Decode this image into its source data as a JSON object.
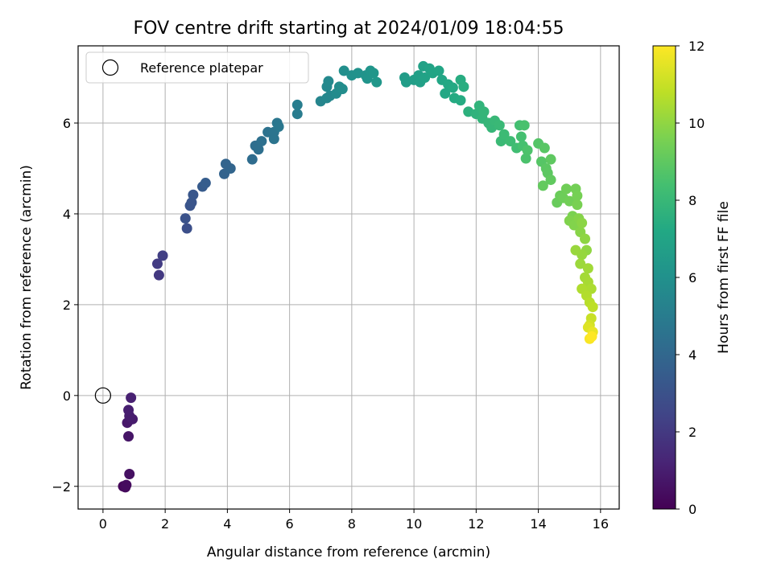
{
  "chart_data": {
    "type": "scatter",
    "title": "FOV centre drift starting at 2024/01/09 18:04:55",
    "xlabel": "Angular distance from reference (arcmin)",
    "ylabel": "Rotation from reference (arcmin)",
    "xlim": [
      -0.8,
      16.6
    ],
    "ylim": [
      -2.5,
      7.7
    ],
    "xticks": [
      0,
      2,
      4,
      6,
      8,
      10,
      12,
      14,
      16
    ],
    "yticks": [
      -2,
      0,
      2,
      4,
      6
    ],
    "grid": true,
    "legend": {
      "position": "top-left",
      "entries": [
        "Reference platepar"
      ]
    },
    "reference_point": {
      "x": 0,
      "y": 0,
      "label": "Reference platepar"
    },
    "colorbar": {
      "label": "Hours from first FF file",
      "range": [
        0,
        12
      ],
      "ticks": [
        0,
        2,
        4,
        6,
        8,
        10,
        12
      ],
      "colormap": "viridis"
    },
    "points": [
      {
        "x": 0.65,
        "y": -2.0,
        "c": 0.2
      },
      {
        "x": 0.72,
        "y": -2.02,
        "c": 0.3
      },
      {
        "x": 0.75,
        "y": -1.97,
        "c": 0.35
      },
      {
        "x": 0.85,
        "y": -1.73,
        "c": 0.5
      },
      {
        "x": 0.82,
        "y": -0.9,
        "c": 0.7
      },
      {
        "x": 0.78,
        "y": -0.6,
        "c": 0.8
      },
      {
        "x": 0.95,
        "y": -0.52,
        "c": 0.9
      },
      {
        "x": 0.85,
        "y": -0.45,
        "c": 0.95
      },
      {
        "x": 0.82,
        "y": -0.32,
        "c": 1.0
      },
      {
        "x": 0.9,
        "y": -0.05,
        "c": 1.1
      },
      {
        "x": 1.8,
        "y": 2.65,
        "c": 2.0
      },
      {
        "x": 1.75,
        "y": 2.9,
        "c": 2.1
      },
      {
        "x": 1.92,
        "y": 3.08,
        "c": 2.2
      },
      {
        "x": 2.7,
        "y": 3.68,
        "c": 2.9
      },
      {
        "x": 2.65,
        "y": 3.9,
        "c": 3.0
      },
      {
        "x": 2.8,
        "y": 4.18,
        "c": 3.1
      },
      {
        "x": 2.85,
        "y": 4.25,
        "c": 3.15
      },
      {
        "x": 2.9,
        "y": 4.42,
        "c": 3.2
      },
      {
        "x": 3.2,
        "y": 4.6,
        "c": 3.4
      },
      {
        "x": 3.3,
        "y": 4.68,
        "c": 3.5
      },
      {
        "x": 3.9,
        "y": 4.88,
        "c": 3.8
      },
      {
        "x": 4.1,
        "y": 5.0,
        "c": 3.9
      },
      {
        "x": 3.95,
        "y": 5.1,
        "c": 3.85
      },
      {
        "x": 4.8,
        "y": 5.2,
        "c": 4.2
      },
      {
        "x": 4.9,
        "y": 5.5,
        "c": 4.3
      },
      {
        "x": 5.0,
        "y": 5.42,
        "c": 4.35
      },
      {
        "x": 5.1,
        "y": 5.6,
        "c": 4.4
      },
      {
        "x": 5.3,
        "y": 5.8,
        "c": 4.5
      },
      {
        "x": 5.5,
        "y": 5.65,
        "c": 4.6
      },
      {
        "x": 5.5,
        "y": 5.8,
        "c": 4.6
      },
      {
        "x": 5.6,
        "y": 6.0,
        "c": 4.7
      },
      {
        "x": 5.65,
        "y": 5.92,
        "c": 4.75
      },
      {
        "x": 6.25,
        "y": 6.2,
        "c": 5.0
      },
      {
        "x": 6.25,
        "y": 6.4,
        "c": 5.05
      },
      {
        "x": 7.0,
        "y": 6.48,
        "c": 5.4
      },
      {
        "x": 7.2,
        "y": 6.55,
        "c": 5.5
      },
      {
        "x": 7.3,
        "y": 6.6,
        "c": 5.5
      },
      {
        "x": 7.2,
        "y": 6.8,
        "c": 5.55
      },
      {
        "x": 7.25,
        "y": 6.92,
        "c": 5.6
      },
      {
        "x": 7.5,
        "y": 6.65,
        "c": 5.7
      },
      {
        "x": 7.6,
        "y": 6.8,
        "c": 5.75
      },
      {
        "x": 7.7,
        "y": 6.75,
        "c": 5.8
      },
      {
        "x": 7.75,
        "y": 7.15,
        "c": 5.9
      },
      {
        "x": 8.0,
        "y": 7.05,
        "c": 6.0
      },
      {
        "x": 8.2,
        "y": 7.1,
        "c": 6.05
      },
      {
        "x": 8.45,
        "y": 7.05,
        "c": 6.1
      },
      {
        "x": 8.5,
        "y": 6.98,
        "c": 6.15
      },
      {
        "x": 8.6,
        "y": 7.15,
        "c": 6.2
      },
      {
        "x": 8.7,
        "y": 7.1,
        "c": 6.25
      },
      {
        "x": 8.8,
        "y": 6.9,
        "c": 6.3
      },
      {
        "x": 9.7,
        "y": 7.0,
        "c": 6.6
      },
      {
        "x": 9.75,
        "y": 6.9,
        "c": 6.65
      },
      {
        "x": 10.0,
        "y": 6.95,
        "c": 6.7
      },
      {
        "x": 10.15,
        "y": 7.05,
        "c": 6.75
      },
      {
        "x": 10.2,
        "y": 6.9,
        "c": 6.8
      },
      {
        "x": 10.3,
        "y": 7.25,
        "c": 6.85
      },
      {
        "x": 10.35,
        "y": 7.0,
        "c": 6.9
      },
      {
        "x": 10.5,
        "y": 7.2,
        "c": 6.95
      },
      {
        "x": 10.6,
        "y": 7.1,
        "c": 7.0
      },
      {
        "x": 10.8,
        "y": 7.15,
        "c": 7.05
      },
      {
        "x": 10.9,
        "y": 6.95,
        "c": 7.1
      },
      {
        "x": 11.0,
        "y": 6.65,
        "c": 7.15
      },
      {
        "x": 11.1,
        "y": 6.85,
        "c": 7.2
      },
      {
        "x": 11.25,
        "y": 6.78,
        "c": 7.25
      },
      {
        "x": 11.3,
        "y": 6.55,
        "c": 7.3
      },
      {
        "x": 11.5,
        "y": 6.5,
        "c": 7.35
      },
      {
        "x": 11.5,
        "y": 6.95,
        "c": 7.4
      },
      {
        "x": 11.6,
        "y": 6.8,
        "c": 7.45
      },
      {
        "x": 11.75,
        "y": 6.25,
        "c": 7.6
      },
      {
        "x": 12.0,
        "y": 6.2,
        "c": 7.7
      },
      {
        "x": 12.1,
        "y": 6.38,
        "c": 7.75
      },
      {
        "x": 12.2,
        "y": 6.1,
        "c": 7.8
      },
      {
        "x": 12.25,
        "y": 6.25,
        "c": 7.85
      },
      {
        "x": 12.4,
        "y": 6.0,
        "c": 7.9
      },
      {
        "x": 12.5,
        "y": 5.9,
        "c": 7.95
      },
      {
        "x": 12.6,
        "y": 6.05,
        "c": 8.0
      },
      {
        "x": 12.75,
        "y": 5.95,
        "c": 8.05
      },
      {
        "x": 12.8,
        "y": 5.6,
        "c": 8.1
      },
      {
        "x": 12.9,
        "y": 5.75,
        "c": 8.15
      },
      {
        "x": 13.1,
        "y": 5.6,
        "c": 8.2
      },
      {
        "x": 13.3,
        "y": 5.45,
        "c": 8.3
      },
      {
        "x": 13.4,
        "y": 5.95,
        "c": 8.35
      },
      {
        "x": 13.45,
        "y": 5.7,
        "c": 8.4
      },
      {
        "x": 13.5,
        "y": 5.5,
        "c": 8.45
      },
      {
        "x": 13.55,
        "y": 5.95,
        "c": 8.5
      },
      {
        "x": 13.6,
        "y": 5.22,
        "c": 8.55
      },
      {
        "x": 13.65,
        "y": 5.4,
        "c": 8.6
      },
      {
        "x": 14.0,
        "y": 5.55,
        "c": 8.75
      },
      {
        "x": 14.1,
        "y": 5.15,
        "c": 8.8
      },
      {
        "x": 14.2,
        "y": 5.45,
        "c": 8.85
      },
      {
        "x": 14.25,
        "y": 5.0,
        "c": 8.9
      },
      {
        "x": 14.3,
        "y": 4.9,
        "c": 8.95
      },
      {
        "x": 14.4,
        "y": 5.2,
        "c": 9.0
      },
      {
        "x": 14.4,
        "y": 4.75,
        "c": 9.05
      },
      {
        "x": 14.15,
        "y": 4.62,
        "c": 9.1
      },
      {
        "x": 14.6,
        "y": 4.25,
        "c": 9.2
      },
      {
        "x": 14.7,
        "y": 4.4,
        "c": 9.25
      },
      {
        "x": 14.8,
        "y": 4.35,
        "c": 9.3
      },
      {
        "x": 14.9,
        "y": 4.55,
        "c": 9.35
      },
      {
        "x": 15.0,
        "y": 4.28,
        "c": 9.4
      },
      {
        "x": 15.2,
        "y": 4.55,
        "c": 9.45
      },
      {
        "x": 15.25,
        "y": 4.4,
        "c": 9.5
      },
      {
        "x": 15.25,
        "y": 4.2,
        "c": 9.55
      },
      {
        "x": 15.1,
        "y": 3.95,
        "c": 9.6
      },
      {
        "x": 15.0,
        "y": 3.85,
        "c": 9.7
      },
      {
        "x": 15.15,
        "y": 3.75,
        "c": 9.75
      },
      {
        "x": 15.3,
        "y": 3.9,
        "c": 9.8
      },
      {
        "x": 15.35,
        "y": 3.6,
        "c": 9.85
      },
      {
        "x": 15.4,
        "y": 3.8,
        "c": 9.9
      },
      {
        "x": 15.5,
        "y": 3.45,
        "c": 9.95
      },
      {
        "x": 15.55,
        "y": 3.2,
        "c": 10.0
      },
      {
        "x": 15.4,
        "y": 3.1,
        "c": 10.1
      },
      {
        "x": 15.2,
        "y": 3.2,
        "c": 10.15
      },
      {
        "x": 15.35,
        "y": 2.9,
        "c": 10.2
      },
      {
        "x": 15.6,
        "y": 2.8,
        "c": 10.3
      },
      {
        "x": 15.5,
        "y": 2.6,
        "c": 10.35
      },
      {
        "x": 15.6,
        "y": 2.5,
        "c": 10.4
      },
      {
        "x": 15.7,
        "y": 2.35,
        "c": 10.5
      },
      {
        "x": 15.4,
        "y": 2.35,
        "c": 10.55
      },
      {
        "x": 15.55,
        "y": 2.2,
        "c": 10.6
      },
      {
        "x": 15.65,
        "y": 2.05,
        "c": 10.7
      },
      {
        "x": 15.75,
        "y": 1.95,
        "c": 10.8
      },
      {
        "x": 15.7,
        "y": 1.7,
        "c": 11.0
      },
      {
        "x": 15.65,
        "y": 1.55,
        "c": 11.2
      },
      {
        "x": 15.6,
        "y": 1.5,
        "c": 11.4
      },
      {
        "x": 15.75,
        "y": 1.4,
        "c": 11.6
      },
      {
        "x": 15.65,
        "y": 1.25,
        "c": 11.9
      },
      {
        "x": 15.72,
        "y": 1.3,
        "c": 12.0
      }
    ]
  }
}
